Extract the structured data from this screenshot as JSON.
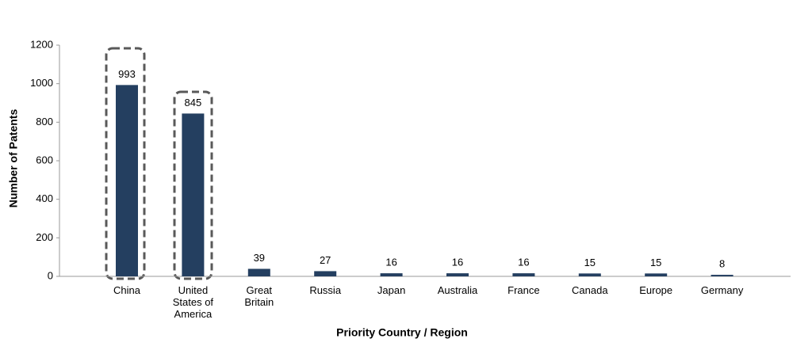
{
  "chart_data": {
    "type": "bar",
    "x_label": "Priority Country / Region",
    "y_label": "Number of Patents",
    "categories": [
      "China",
      "United States of America",
      "Great Britain",
      "Russia",
      "Japan",
      "Australia",
      "France",
      "Canada",
      "Europe",
      "Germany"
    ],
    "values": [
      993,
      845,
      39,
      27,
      16,
      16,
      16,
      15,
      15,
      8
    ],
    "color": "#243f60",
    "ylim": [
      0,
      1200
    ],
    "yticks": [
      0,
      200,
      400,
      600,
      800,
      1000,
      1200
    ],
    "grid": false
  }
}
